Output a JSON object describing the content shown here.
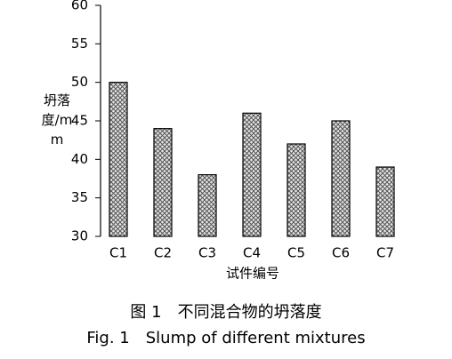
{
  "chart_data": {
    "type": "bar",
    "ylabel": "坍落度/mm",
    "xlabel": "试件编号",
    "categories": [
      "C1",
      "C2",
      "C3",
      "C4",
      "C5",
      "C6",
      "C7"
    ],
    "values": [
      50,
      44,
      38,
      46,
      42,
      45,
      39
    ],
    "color": "#9a9a9a",
    "ylim": [
      30,
      60
    ],
    "yticks": [
      30,
      35,
      40,
      45,
      50,
      55,
      60
    ],
    "grid": false,
    "captions": [
      "图 1　不同混合物的坍落度",
      "Fig. 1　Slump of different mixtures"
    ]
  }
}
